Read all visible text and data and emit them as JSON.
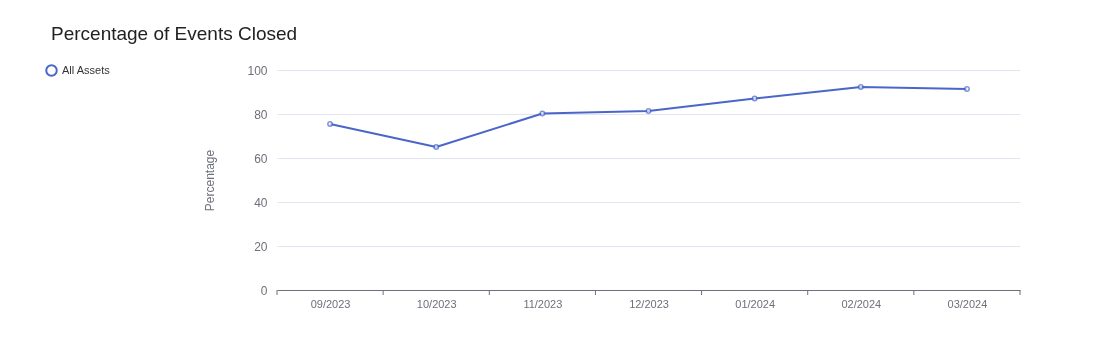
{
  "chart_data": {
    "type": "line",
    "title": "Percentage of Events Closed",
    "ylabel": "Percentage",
    "categories": [
      "09/2023",
      "10/2023",
      "11/2023",
      "12/2023",
      "01/2024",
      "02/2024",
      "03/2024"
    ],
    "series": [
      {
        "name": "All Assets",
        "color": "#4a66c9",
        "values": [
          75.5,
          65,
          80.2,
          81.4,
          87,
          92.3,
          91.4
        ]
      }
    ],
    "ylim": [
      0,
      100
    ],
    "yticks": [
      0,
      20,
      40,
      60,
      80,
      100
    ],
    "grid": "y",
    "legend": "left",
    "marker": "circle",
    "line_style": "solid"
  }
}
